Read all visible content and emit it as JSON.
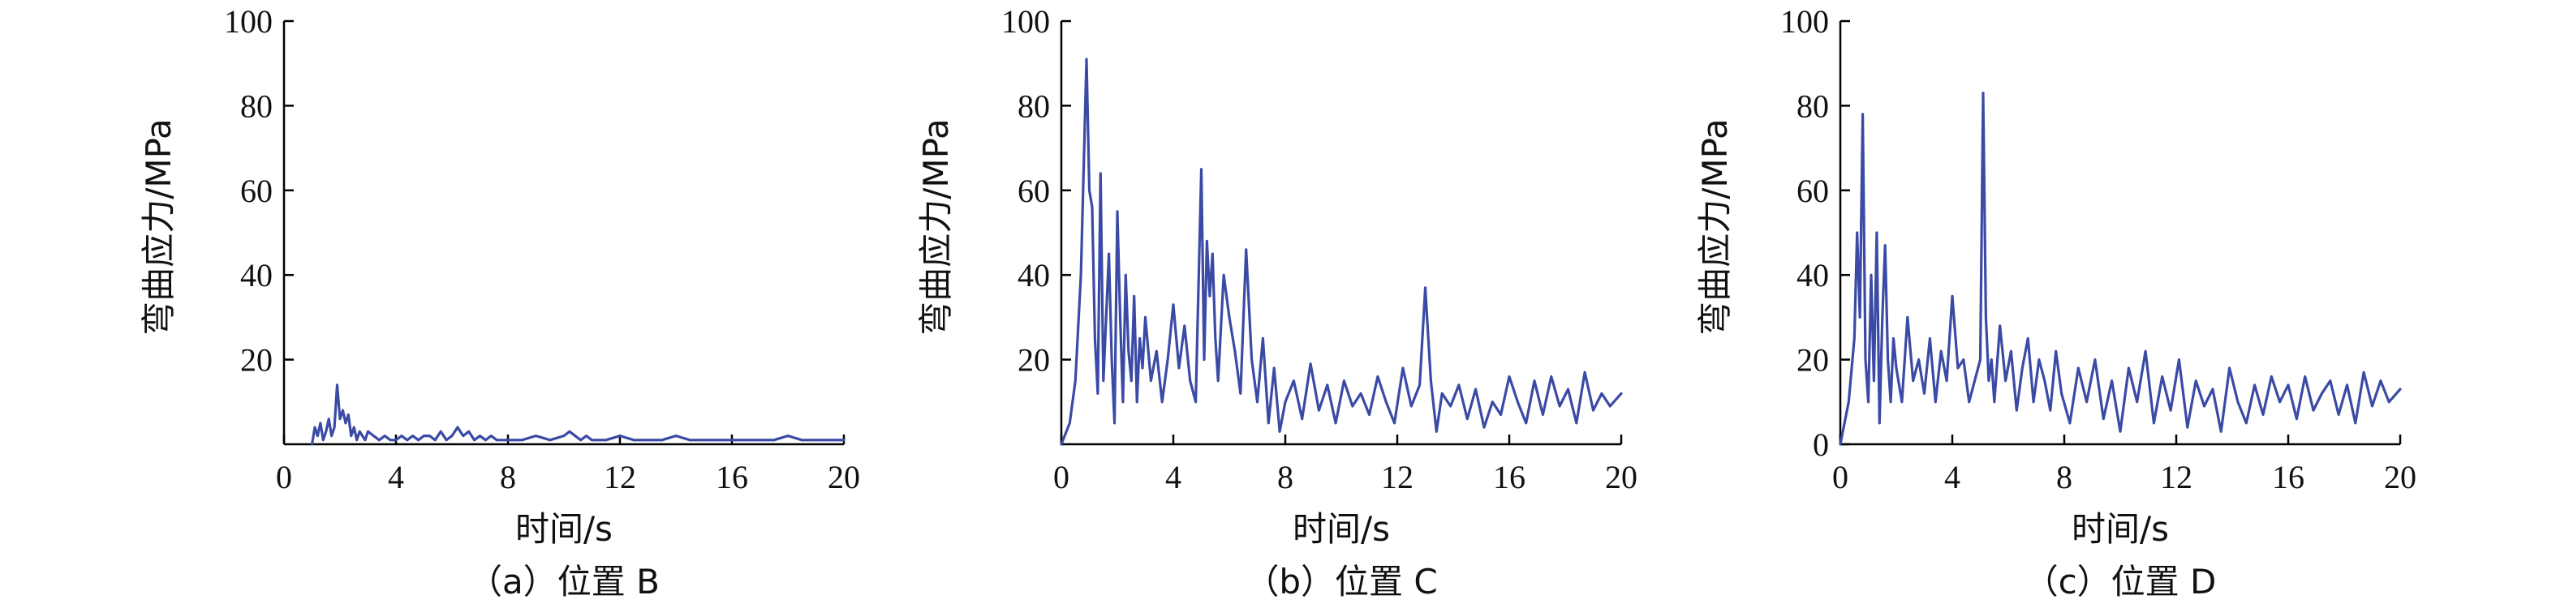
{
  "colors": {
    "series": "#3a4aa5",
    "axis": "#000000"
  },
  "chart_data": [
    {
      "type": "line",
      "caption": "（a）位置 B",
      "xlabel": "时间/s",
      "ylabel": "弯曲应力/MPa",
      "xlim": [
        0,
        20
      ],
      "ylim": [
        0,
        100
      ],
      "x_ticks": [
        "0",
        "4",
        "8",
        "12",
        "16",
        "20"
      ],
      "y_ticks": [
        "20",
        "40",
        "60",
        "80",
        "100"
      ],
      "series": [
        {
          "x": [
            1.0,
            1.1,
            1.2,
            1.3,
            1.4,
            1.5,
            1.6,
            1.7,
            1.8,
            1.9,
            2.0,
            2.1,
            2.2,
            2.3,
            2.4,
            2.5,
            2.6,
            2.7,
            2.8,
            2.9,
            3.0,
            3.2,
            3.4,
            3.6,
            3.8,
            4.0,
            4.2,
            4.4,
            4.6,
            4.8,
            5.0,
            5.2,
            5.4,
            5.6,
            5.8,
            6.0,
            6.2,
            6.4,
            6.6,
            6.8,
            7.0,
            7.2,
            7.4,
            7.6,
            7.8,
            8.0,
            8.5,
            9.0,
            9.5,
            10.0,
            10.2,
            10.4,
            10.6,
            10.8,
            11.0,
            11.5,
            12.0,
            12.5,
            13.0,
            13.5,
            14.0,
            14.5,
            15.0,
            15.5,
            16.0,
            16.5,
            17.0,
            17.5,
            18.0,
            18.5,
            19.0,
            19.5,
            20.0
          ],
          "y": [
            0,
            4,
            2,
            5,
            1,
            3,
            6,
            2,
            4,
            14,
            6,
            8,
            5,
            7,
            2,
            4,
            1,
            3,
            2,
            1,
            3,
            2,
            1,
            2,
            1,
            1,
            2,
            1,
            2,
            1,
            2,
            2,
            1,
            3,
            1,
            2,
            4,
            2,
            3,
            1,
            2,
            1,
            2,
            1,
            1,
            1,
            1,
            2,
            1,
            2,
            3,
            2,
            1,
            2,
            1,
            1,
            2,
            1,
            1,
            1,
            2,
            1,
            1,
            1,
            1,
            1,
            1,
            1,
            2,
            1,
            1,
            1,
            1
          ]
        }
      ]
    },
    {
      "type": "line",
      "caption": "（b）位置 C",
      "xlabel": "时间/s",
      "ylabel": "弯曲应力/MPa",
      "xlim": [
        0,
        20
      ],
      "ylim": [
        0,
        100
      ],
      "x_ticks": [
        "0",
        "4",
        "8",
        "12",
        "16",
        "20"
      ],
      "y_ticks": [
        "20",
        "40",
        "60",
        "80",
        "100"
      ],
      "series": [
        {
          "x": [
            0.0,
            0.3,
            0.5,
            0.7,
            0.9,
            1.0,
            1.1,
            1.2,
            1.3,
            1.4,
            1.5,
            1.6,
            1.7,
            1.8,
            1.9,
            2.0,
            2.1,
            2.2,
            2.3,
            2.4,
            2.5,
            2.6,
            2.7,
            2.8,
            2.9,
            3.0,
            3.2,
            3.4,
            3.6,
            3.8,
            4.0,
            4.2,
            4.4,
            4.6,
            4.8,
            5.0,
            5.1,
            5.2,
            5.3,
            5.4,
            5.5,
            5.6,
            5.8,
            6.0,
            6.2,
            6.4,
            6.6,
            6.8,
            7.0,
            7.2,
            7.4,
            7.6,
            7.8,
            8.0,
            8.3,
            8.6,
            8.9,
            9.2,
            9.5,
            9.8,
            10.1,
            10.4,
            10.7,
            11.0,
            11.3,
            11.6,
            11.9,
            12.2,
            12.5,
            12.8,
            13.0,
            13.2,
            13.4,
            13.6,
            13.9,
            14.2,
            14.5,
            14.8,
            15.1,
            15.4,
            15.7,
            16.0,
            16.3,
            16.6,
            16.9,
            17.2,
            17.5,
            17.8,
            18.1,
            18.4,
            18.7,
            19.0,
            19.3,
            19.6,
            20.0
          ],
          "y": [
            0,
            5,
            15,
            40,
            91,
            60,
            56,
            25,
            12,
            64,
            15,
            30,
            45,
            20,
            5,
            55,
            30,
            10,
            40,
            22,
            15,
            35,
            10,
            25,
            18,
            30,
            15,
            22,
            10,
            20,
            33,
            18,
            28,
            15,
            10,
            65,
            20,
            48,
            35,
            45,
            25,
            15,
            40,
            30,
            22,
            12,
            46,
            20,
            10,
            25,
            5,
            18,
            3,
            10,
            15,
            6,
            19,
            8,
            14,
            5,
            15,
            9,
            12,
            7,
            16,
            10,
            5,
            18,
            9,
            14,
            37,
            15,
            3,
            12,
            9,
            14,
            6,
            13,
            4,
            10,
            7,
            16,
            10,
            5,
            15,
            7,
            16,
            9,
            13,
            5,
            17,
            8,
            12,
            9,
            12
          ]
        }
      ]
    },
    {
      "type": "line",
      "caption": "（c）位置 D",
      "xlabel": "时间/s",
      "ylabel": "弯曲应力/MPa",
      "xlim": [
        0,
        20
      ],
      "ylim": [
        0,
        100
      ],
      "x_ticks": [
        "0",
        "4",
        "8",
        "12",
        "16",
        "20"
      ],
      "y_ticks": [
        "0",
        "20",
        "40",
        "60",
        "80",
        "100"
      ],
      "series": [
        {
          "x": [
            0.0,
            0.3,
            0.5,
            0.6,
            0.7,
            0.8,
            0.9,
            1.0,
            1.1,
            1.2,
            1.3,
            1.4,
            1.5,
            1.6,
            1.7,
            1.8,
            1.9,
            2.0,
            2.2,
            2.4,
            2.6,
            2.8,
            3.0,
            3.2,
            3.4,
            3.6,
            3.8,
            4.0,
            4.2,
            4.4,
            4.6,
            4.8,
            5.0,
            5.1,
            5.2,
            5.3,
            5.4,
            5.5,
            5.7,
            5.9,
            6.1,
            6.3,
            6.5,
            6.7,
            6.9,
            7.1,
            7.3,
            7.5,
            7.7,
            7.9,
            8.2,
            8.5,
            8.8,
            9.1,
            9.4,
            9.7,
            10.0,
            10.3,
            10.6,
            10.9,
            11.2,
            11.5,
            11.8,
            12.1,
            12.4,
            12.7,
            13.0,
            13.3,
            13.6,
            13.9,
            14.2,
            14.5,
            14.8,
            15.1,
            15.4,
            15.7,
            16.0,
            16.3,
            16.6,
            16.9,
            17.2,
            17.5,
            17.8,
            18.1,
            18.4,
            18.7,
            19.0,
            19.3,
            19.6,
            20.0
          ],
          "y": [
            0,
            10,
            25,
            50,
            30,
            78,
            20,
            10,
            40,
            15,
            50,
            5,
            30,
            47,
            20,
            10,
            25,
            18,
            10,
            30,
            15,
            20,
            12,
            25,
            10,
            22,
            15,
            35,
            18,
            20,
            10,
            15,
            20,
            83,
            30,
            15,
            20,
            10,
            28,
            15,
            22,
            8,
            18,
            25,
            10,
            20,
            15,
            8,
            22,
            12,
            5,
            18,
            10,
            20,
            6,
            15,
            3,
            18,
            10,
            22,
            5,
            16,
            8,
            20,
            4,
            15,
            9,
            13,
            3,
            18,
            10,
            5,
            14,
            7,
            16,
            10,
            14,
            6,
            16,
            8,
            12,
            15,
            7,
            14,
            5,
            17,
            9,
            15,
            10,
            13
          ]
        }
      ]
    }
  ]
}
